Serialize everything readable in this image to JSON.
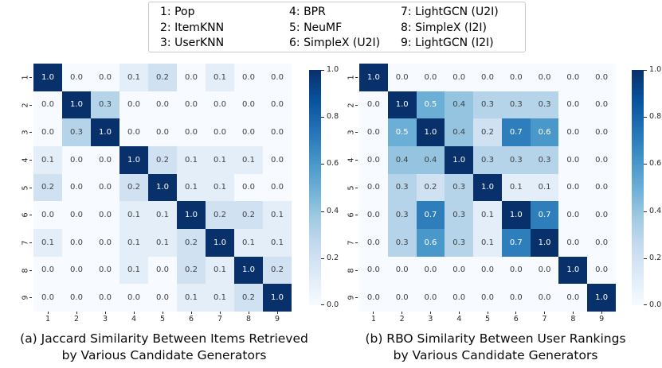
{
  "legend": {
    "columns": [
      [
        "1: Pop",
        "2: ItemKNN",
        "3: UserKNN"
      ],
      [
        "4: BPR",
        "5: NeuMF",
        "6: SimpleX (U2I)"
      ],
      [
        "7: LightGCN (U2I)",
        "8: SimpleX (I2I)",
        "9: LightGCN (I2I)"
      ]
    ]
  },
  "chart_data": [
    {
      "type": "heatmap",
      "title": "(a) Jaccard Similarity Between Items Retrieved by Various Candidate Generators",
      "caption": [
        "(a) Jaccard Similarity Between Items Retrieved",
        "by Various Candidate Generators"
      ],
      "x_ticklabels": [
        "1",
        "2",
        "3",
        "4",
        "5",
        "6",
        "7",
        "8",
        "9"
      ],
      "y_ticklabels": [
        "1",
        "2",
        "3",
        "4",
        "5",
        "6",
        "7",
        "8",
        "9"
      ],
      "colormap": "Blues",
      "vmin": 0.0,
      "vmax": 1.0,
      "colorbar_ticks": [
        1.0,
        0.8,
        0.6,
        0.4,
        0.2,
        0.0
      ],
      "matrix": [
        [
          1.0,
          0.0,
          0.0,
          0.1,
          0.2,
          0.0,
          0.1,
          0.0,
          0.0
        ],
        [
          0.0,
          1.0,
          0.3,
          0.0,
          0.0,
          0.0,
          0.0,
          0.0,
          0.0
        ],
        [
          0.0,
          0.3,
          1.0,
          0.0,
          0.0,
          0.0,
          0.0,
          0.0,
          0.0
        ],
        [
          0.1,
          0.0,
          0.0,
          1.0,
          0.2,
          0.1,
          0.1,
          0.1,
          0.0
        ],
        [
          0.2,
          0.0,
          0.0,
          0.2,
          1.0,
          0.1,
          0.1,
          0.0,
          0.0
        ],
        [
          0.0,
          0.0,
          0.0,
          0.1,
          0.1,
          1.0,
          0.2,
          0.2,
          0.1
        ],
        [
          0.1,
          0.0,
          0.0,
          0.1,
          0.1,
          0.2,
          1.0,
          0.1,
          0.1
        ],
        [
          0.0,
          0.0,
          0.0,
          0.1,
          0.0,
          0.2,
          0.1,
          1.0,
          0.2
        ],
        [
          0.0,
          0.0,
          0.0,
          0.0,
          0.0,
          0.1,
          0.1,
          0.2,
          1.0
        ]
      ]
    },
    {
      "type": "heatmap",
      "title": "(b) RBO Similarity Between User Rankings by Various Candidate Generators",
      "caption": [
        "(b) RBO Similarity Between User Rankings",
        "by Various Candidate Generators"
      ],
      "x_ticklabels": [
        "1",
        "2",
        "3",
        "4",
        "5",
        "6",
        "7",
        "8",
        "9"
      ],
      "y_ticklabels": [
        "1",
        "2",
        "3",
        "4",
        "5",
        "6",
        "7",
        "8",
        "9"
      ],
      "colormap": "Blues",
      "vmin": 0.0,
      "vmax": 1.0,
      "colorbar_ticks": [
        1.0,
        0.8,
        0.6,
        0.4,
        0.2,
        0.0
      ],
      "matrix": [
        [
          1.0,
          0.0,
          0.0,
          0.0,
          0.0,
          0.0,
          0.0,
          0.0,
          0.0
        ],
        [
          0.0,
          1.0,
          0.5,
          0.4,
          0.3,
          0.3,
          0.3,
          0.0,
          0.0
        ],
        [
          0.0,
          0.5,
          1.0,
          0.4,
          0.2,
          0.7,
          0.6,
          0.0,
          0.0
        ],
        [
          0.0,
          0.4,
          0.4,
          1.0,
          0.3,
          0.3,
          0.3,
          0.0,
          0.0
        ],
        [
          0.0,
          0.3,
          0.2,
          0.3,
          1.0,
          0.1,
          0.1,
          0.0,
          0.0
        ],
        [
          0.0,
          0.3,
          0.7,
          0.3,
          0.1,
          1.0,
          0.7,
          0.0,
          0.0
        ],
        [
          0.0,
          0.3,
          0.6,
          0.3,
          0.1,
          0.7,
          1.0,
          0.0,
          0.0
        ],
        [
          0.0,
          0.0,
          0.0,
          0.0,
          0.0,
          0.0,
          0.0,
          1.0,
          0.0
        ],
        [
          0.0,
          0.0,
          0.0,
          0.0,
          0.0,
          0.0,
          0.0,
          0.0,
          1.0
        ]
      ]
    }
  ],
  "style": {
    "cmap_anchors_hex": [
      "#f7fbff",
      "#deebf7",
      "#c6dbef",
      "#9ecae1",
      "#6baed6",
      "#4292c6",
      "#2171b5",
      "#08519c",
      "#08306b"
    ],
    "diagonal_color": "#08306b",
    "annot_dark_text": "#404040",
    "annot_light_text": "#ffffff"
  }
}
